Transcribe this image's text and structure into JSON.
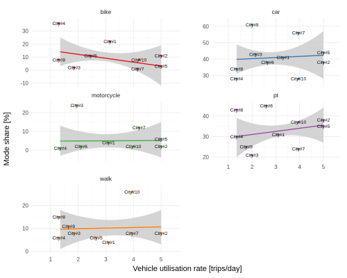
{
  "chart_data": {
    "type": "scatter",
    "xlabel": "Vehicle utilisation rate [trips/day]",
    "ylabel": "Mode share [%]",
    "grid": true,
    "legend": "none",
    "panels": [
      {
        "name": "bike",
        "color": "#e41a1c",
        "xlim": [
          0.3,
          5.7
        ],
        "ylim": [
          -13,
          40
        ],
        "xticks": [
          "1",
          "2",
          "3",
          "4",
          "5"
        ],
        "yticks": [
          -10,
          0,
          10,
          20,
          30
        ],
        "show_xticks": false,
        "points": [
          {
            "label": "City#1",
            "x": 3.15,
            "y": 22
          },
          {
            "label": "City#2",
            "x": 5.0,
            "y": 11
          },
          {
            "label": "City#3",
            "x": 1.85,
            "y": 2
          },
          {
            "label": "City#4",
            "x": 1.3,
            "y": 36
          },
          {
            "label": "City#5",
            "x": 5.0,
            "y": 3
          },
          {
            "label": "City#6",
            "x": 2.45,
            "y": 11
          },
          {
            "label": "City#7",
            "x": 4.15,
            "y": 1
          },
          {
            "label": "City#8",
            "x": 1.3,
            "y": 8
          },
          {
            "label": "City#10",
            "x": 4.2,
            "y": 8
          }
        ],
        "fit": {
          "x": [
            1.35,
            5.0
          ],
          "y": [
            14,
            3
          ],
          "band_lo": [
            3,
            -12
          ],
          "band_hi": [
            25,
            19
          ]
        }
      },
      {
        "name": "car",
        "color": "#377eb8",
        "xlim": [
          0.3,
          5.7
        ],
        "ylim": [
          23,
          65
        ],
        "xticks": [
          "1",
          "2",
          "3",
          "4",
          "5"
        ],
        "yticks": [
          30,
          40,
          50,
          60
        ],
        "show_xticks": false,
        "points": [
          {
            "label": "City#1",
            "x": 3.3,
            "y": 41
          },
          {
            "label": "City#2",
            "x": 5.0,
            "y": 38
          },
          {
            "label": "City#3",
            "x": 2.15,
            "y": 43
          },
          {
            "label": "City#4",
            "x": 1.35,
            "y": 28
          },
          {
            "label": "City#5",
            "x": 5.0,
            "y": 44
          },
          {
            "label": "City#6",
            "x": 2.65,
            "y": 38
          },
          {
            "label": "City#7",
            "x": 3.95,
            "y": 56
          },
          {
            "label": "City#8",
            "x": 1.35,
            "y": 34
          },
          {
            "label": "City#9",
            "x": 2.0,
            "y": 61
          },
          {
            "label": "City#10",
            "x": 3.95,
            "y": 28
          }
        ],
        "fit": {
          "x": [
            1.35,
            5.0
          ],
          "y": [
            39.8,
            42.3
          ],
          "band_lo": [
            31,
            28
          ],
          "band_hi": [
            49,
            57
          ]
        }
      },
      {
        "name": "motorcycle",
        "color": "#4daf4a",
        "xlim": [
          0.3,
          5.7
        ],
        "ylim": [
          -6,
          26
        ],
        "xticks": [
          "1",
          "2",
          "3",
          "4",
          "5"
        ],
        "yticks": [
          0,
          10,
          20
        ],
        "show_xticks": false,
        "points": [
          {
            "label": "City#1",
            "x": 3.1,
            "y": 4
          },
          {
            "label": "City#2",
            "x": 5.0,
            "y": 2
          },
          {
            "label": "City#3",
            "x": 1.95,
            "y": 24
          },
          {
            "label": "City#4",
            "x": 1.35,
            "y": 1
          },
          {
            "label": "City#5",
            "x": 5.0,
            "y": 6
          },
          {
            "label": "City#6",
            "x": 2.1,
            "y": 2
          },
          {
            "label": "City#7",
            "x": 4.2,
            "y": 12
          },
          {
            "label": "City#10",
            "x": 4.0,
            "y": 2
          }
        ],
        "fit": {
          "x": [
            1.35,
            5.0
          ],
          "y": [
            4.8,
            5.1
          ],
          "band_lo": [
            -3,
            -4
          ],
          "band_hi": [
            13,
            15
          ]
        }
      },
      {
        "name": "pt",
        "color": "#984ea3",
        "xlim": [
          0.3,
          5.7
        ],
        "ylim": [
          18,
          47
        ],
        "xticks": [
          "1",
          "2",
          "3",
          "4",
          "5"
        ],
        "yticks": [
          20,
          30,
          40
        ],
        "show_xticks": true,
        "points": [
          {
            "label": "City#1",
            "x": 3.1,
            "y": 31
          },
          {
            "label": "City#2",
            "x": 5.0,
            "y": 38
          },
          {
            "label": "City#3",
            "x": 2.0,
            "y": 21
          },
          {
            "label": "City#4",
            "x": 1.35,
            "y": 30
          },
          {
            "label": "City#5",
            "x": 5.0,
            "y": 35
          },
          {
            "label": "City#6",
            "x": 2.6,
            "y": 45
          },
          {
            "label": "City#7",
            "x": 3.95,
            "y": 24
          },
          {
            "label": "City#8",
            "x": 1.35,
            "y": 43
          },
          {
            "label": "City#9",
            "x": 1.75,
            "y": 25
          },
          {
            "label": "City#10",
            "x": 3.95,
            "y": 37
          }
        ],
        "fit": {
          "x": [
            1.35,
            5.0
          ],
          "y": [
            30,
            35.5
          ],
          "band_lo": [
            20,
            27
          ],
          "band_hi": [
            39,
            44
          ]
        }
      },
      {
        "name": "walk",
        "color": "#ff7f00",
        "xlim": [
          0.3,
          5.7
        ],
        "ylim": [
          -1,
          29
        ],
        "xticks": [
          "1",
          "2",
          "3",
          "4",
          "5"
        ],
        "yticks": [
          0,
          10,
          20
        ],
        "show_xticks": true,
        "points": [
          {
            "label": "City#1",
            "x": 3.1,
            "y": 4
          },
          {
            "label": "City#2",
            "x": 5.0,
            "y": 8
          },
          {
            "label": "City#3",
            "x": 1.85,
            "y": 8
          },
          {
            "label": "City#4",
            "x": 1.3,
            "y": 6
          },
          {
            "label": "City#5",
            "x": 2.65,
            "y": 6
          },
          {
            "label": "City#7",
            "x": 3.95,
            "y": 8
          },
          {
            "label": "City#8",
            "x": 1.3,
            "y": 15
          },
          {
            "label": "City#9",
            "x": 1.65,
            "y": 11
          },
          {
            "label": "City#10",
            "x": 3.95,
            "y": 26
          }
        ],
        "fit": {
          "x": [
            1.35,
            5.0
          ],
          "y": [
            9.7,
            10.7
          ],
          "band_lo": [
            1,
            3
          ],
          "band_hi": [
            18,
            18
          ]
        }
      }
    ]
  }
}
